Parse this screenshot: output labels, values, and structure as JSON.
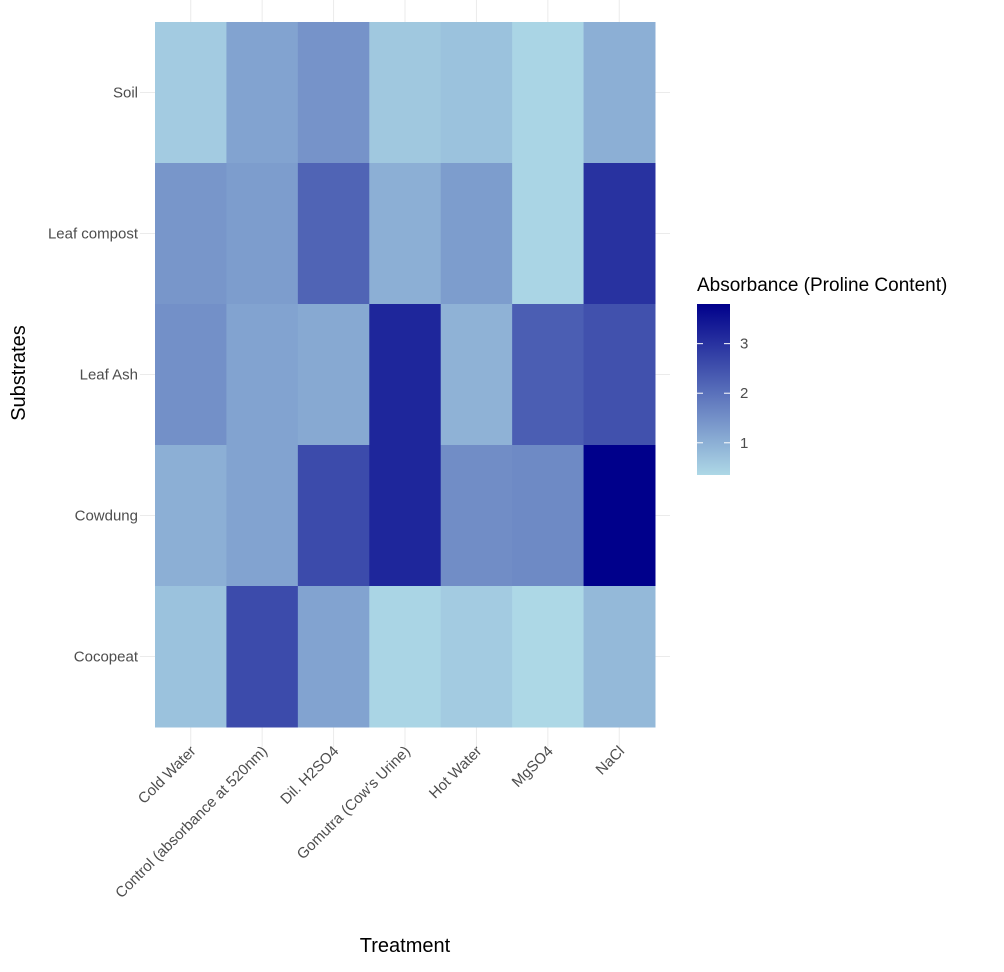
{
  "chart_data": {
    "type": "heatmap",
    "title": "",
    "xlabel": "Treatment",
    "ylabel": "Substrates",
    "x_categories": [
      "Cold Water",
      "Control (absorbance at 520nm)",
      "Dil. H2SO4",
      "Gomutra (Cow's Urine)",
      "Hot Water",
      "MgSO4",
      "NaCl"
    ],
    "y_categories": [
      "Soil",
      "Leaf compost",
      "Leaf Ash",
      "Cowdung",
      "Cocopeat"
    ],
    "values": [
      [
        0.55,
        1.2,
        1.45,
        0.6,
        0.7,
        0.4,
        1.0
      ],
      [
        1.4,
        1.3,
        2.2,
        1.0,
        1.3,
        0.4,
        3.0
      ],
      [
        1.5,
        1.2,
        1.1,
        3.2,
        0.95,
        2.3,
        2.5
      ],
      [
        1.0,
        1.2,
        2.6,
        3.2,
        1.55,
        1.6,
        3.8
      ],
      [
        0.7,
        2.6,
        1.2,
        0.4,
        0.55,
        0.35,
        0.85
      ]
    ],
    "legend": {
      "title": "Absorbance (Proline Content)",
      "ticks": [
        1,
        2,
        3
      ],
      "range": [
        0.35,
        3.8
      ],
      "low_color": "#add8e6",
      "high_color": "#00008b",
      "position": "right"
    },
    "grid": true
  }
}
